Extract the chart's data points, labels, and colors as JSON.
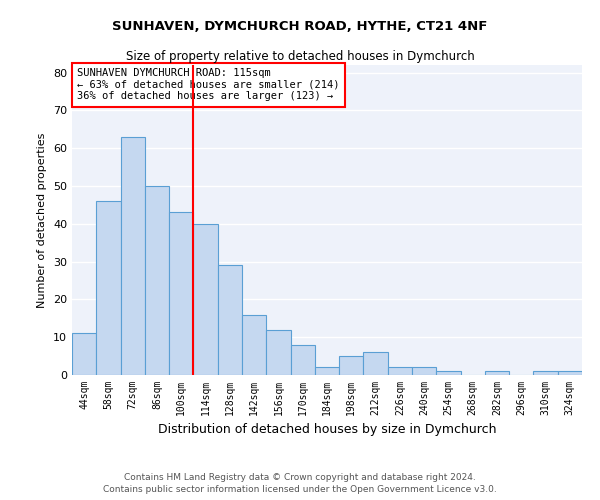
{
  "title1": "SUNHAVEN, DYMCHURCH ROAD, HYTHE, CT21 4NF",
  "title2": "Size of property relative to detached houses in Dymchurch",
  "xlabel": "Distribution of detached houses by size in Dymchurch",
  "ylabel": "Number of detached properties",
  "categories": [
    "44sqm",
    "58sqm",
    "72sqm",
    "86sqm",
    "100sqm",
    "114sqm",
    "128sqm",
    "142sqm",
    "156sqm",
    "170sqm",
    "184sqm",
    "198sqm",
    "212sqm",
    "226sqm",
    "240sqm",
    "254sqm",
    "268sqm",
    "282sqm",
    "296sqm",
    "310sqm",
    "324sqm"
  ],
  "values": [
    11,
    46,
    63,
    50,
    43,
    40,
    29,
    16,
    12,
    8,
    2,
    5,
    6,
    2,
    2,
    1,
    0,
    1,
    0,
    1,
    1
  ],
  "bar_color": "#c5d8f0",
  "bar_edge_color": "#5a9fd4",
  "vline_x": 4.5,
  "vline_color": "red",
  "annotation_text": "SUNHAVEN DYMCHURCH ROAD: 115sqm\n← 63% of detached houses are smaller (214)\n36% of detached houses are larger (123) →",
  "annotation_box_color": "white",
  "annotation_box_edge_color": "red",
  "footnote1": "Contains HM Land Registry data © Crown copyright and database right 2024.",
  "footnote2": "Contains public sector information licensed under the Open Government Licence v3.0.",
  "ylim": [
    0,
    82
  ],
  "background_color": "#eef2fa",
  "grid_color": "white"
}
